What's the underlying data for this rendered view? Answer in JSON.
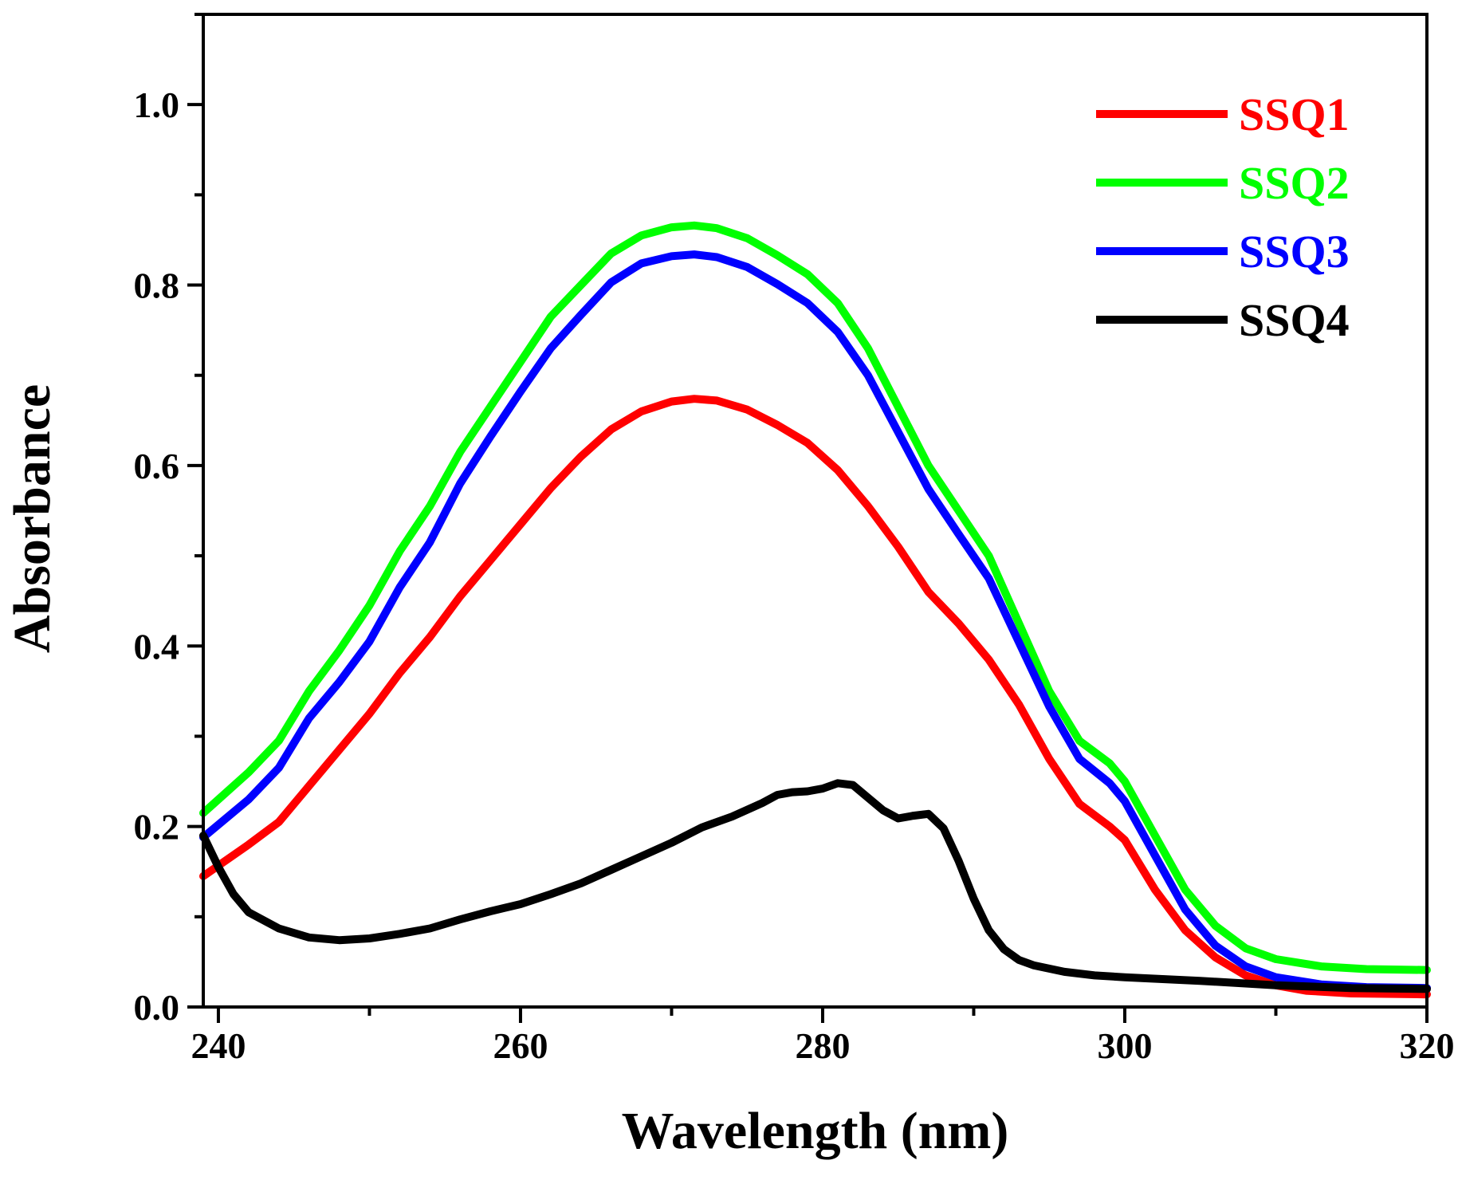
{
  "chart_data": {
    "type": "line",
    "title": "",
    "xlabel": "Wavelength (nm)",
    "ylabel": "Absorbance",
    "xlim": [
      239,
      320
    ],
    "ylim": [
      0.0,
      1.1
    ],
    "xticks": [
      240,
      260,
      280,
      300,
      320
    ],
    "xtick_labels": [
      "240",
      "260",
      "280",
      "300",
      "320"
    ],
    "x_minor_step": 10,
    "yticks": [
      0.0,
      0.2,
      0.4,
      0.6,
      0.8,
      1.0
    ],
    "ytick_labels": [
      "0.0",
      "0.2",
      "0.4",
      "0.6",
      "0.8",
      "1.0"
    ],
    "y_minor_step": 0.1,
    "grid": false,
    "legend_position": "top-right",
    "series": [
      {
        "name": "SSQ1",
        "color": "#ff0000",
        "points": [
          [
            239,
            0.145
          ],
          [
            242,
            0.18
          ],
          [
            244,
            0.205
          ],
          [
            246,
            0.245
          ],
          [
            248,
            0.285
          ],
          [
            250,
            0.325
          ],
          [
            252,
            0.37
          ],
          [
            254,
            0.41
          ],
          [
            256,
            0.455
          ],
          [
            258,
            0.495
          ],
          [
            260,
            0.535
          ],
          [
            262,
            0.575
          ],
          [
            264,
            0.61
          ],
          [
            266,
            0.64
          ],
          [
            268,
            0.66
          ],
          [
            270,
            0.671
          ],
          [
            271.5,
            0.674
          ],
          [
            273,
            0.672
          ],
          [
            275,
            0.662
          ],
          [
            277,
            0.645
          ],
          [
            279,
            0.625
          ],
          [
            281,
            0.595
          ],
          [
            283,
            0.555
          ],
          [
            285,
            0.51
          ],
          [
            287,
            0.46
          ],
          [
            289,
            0.425
          ],
          [
            291,
            0.385
          ],
          [
            293,
            0.335
          ],
          [
            295,
            0.275
          ],
          [
            297,
            0.225
          ],
          [
            299,
            0.2
          ],
          [
            300,
            0.185
          ],
          [
            302,
            0.13
          ],
          [
            304,
            0.085
          ],
          [
            306,
            0.055
          ],
          [
            308,
            0.035
          ],
          [
            310,
            0.024
          ],
          [
            312,
            0.018
          ],
          [
            315,
            0.015
          ],
          [
            320,
            0.014
          ]
        ]
      },
      {
        "name": "SSQ2",
        "color": "#00ff00",
        "points": [
          [
            239,
            0.215
          ],
          [
            242,
            0.26
          ],
          [
            244,
            0.295
          ],
          [
            246,
            0.35
          ],
          [
            248,
            0.395
          ],
          [
            250,
            0.445
          ],
          [
            252,
            0.505
          ],
          [
            254,
            0.555
          ],
          [
            256,
            0.615
          ],
          [
            258,
            0.665
          ],
          [
            260,
            0.715
          ],
          [
            262,
            0.765
          ],
          [
            264,
            0.8
          ],
          [
            266,
            0.835
          ],
          [
            268,
            0.855
          ],
          [
            270,
            0.864
          ],
          [
            271.5,
            0.866
          ],
          [
            273,
            0.863
          ],
          [
            275,
            0.852
          ],
          [
            277,
            0.833
          ],
          [
            279,
            0.812
          ],
          [
            281,
            0.78
          ],
          [
            283,
            0.73
          ],
          [
            285,
            0.665
          ],
          [
            287,
            0.6
          ],
          [
            289,
            0.55
          ],
          [
            291,
            0.5
          ],
          [
            293,
            0.425
          ],
          [
            295,
            0.35
          ],
          [
            297,
            0.295
          ],
          [
            299,
            0.27
          ],
          [
            300,
            0.25
          ],
          [
            302,
            0.19
          ],
          [
            304,
            0.13
          ],
          [
            306,
            0.09
          ],
          [
            308,
            0.065
          ],
          [
            310,
            0.053
          ],
          [
            313,
            0.045
          ],
          [
            316,
            0.042
          ],
          [
            320,
            0.041
          ]
        ]
      },
      {
        "name": "SSQ3",
        "color": "#0000ff",
        "points": [
          [
            239,
            0.188
          ],
          [
            242,
            0.23
          ],
          [
            244,
            0.265
          ],
          [
            246,
            0.32
          ],
          [
            248,
            0.36
          ],
          [
            250,
            0.405
          ],
          [
            252,
            0.465
          ],
          [
            254,
            0.515
          ],
          [
            256,
            0.58
          ],
          [
            258,
            0.632
          ],
          [
            260,
            0.682
          ],
          [
            262,
            0.73
          ],
          [
            264,
            0.767
          ],
          [
            266,
            0.803
          ],
          [
            268,
            0.824
          ],
          [
            270,
            0.832
          ],
          [
            271.5,
            0.834
          ],
          [
            273,
            0.831
          ],
          [
            275,
            0.82
          ],
          [
            277,
            0.801
          ],
          [
            279,
            0.78
          ],
          [
            281,
            0.748
          ],
          [
            283,
            0.7
          ],
          [
            285,
            0.637
          ],
          [
            287,
            0.574
          ],
          [
            289,
            0.524
          ],
          [
            291,
            0.475
          ],
          [
            293,
            0.404
          ],
          [
            295,
            0.333
          ],
          [
            297,
            0.275
          ],
          [
            299,
            0.248
          ],
          [
            300,
            0.228
          ],
          [
            302,
            0.168
          ],
          [
            304,
            0.108
          ],
          [
            306,
            0.068
          ],
          [
            308,
            0.045
          ],
          [
            310,
            0.033
          ],
          [
            313,
            0.025
          ],
          [
            316,
            0.022
          ],
          [
            320,
            0.021
          ]
        ]
      },
      {
        "name": "SSQ4",
        "color": "#000000",
        "points": [
          [
            239,
            0.19
          ],
          [
            240,
            0.155
          ],
          [
            241,
            0.125
          ],
          [
            242,
            0.105
          ],
          [
            244,
            0.087
          ],
          [
            246,
            0.077
          ],
          [
            248,
            0.074
          ],
          [
            250,
            0.076
          ],
          [
            252,
            0.081
          ],
          [
            254,
            0.087
          ],
          [
            256,
            0.097
          ],
          [
            258,
            0.106
          ],
          [
            260,
            0.114
          ],
          [
            262,
            0.125
          ],
          [
            264,
            0.137
          ],
          [
            266,
            0.152
          ],
          [
            268,
            0.167
          ],
          [
            270,
            0.182
          ],
          [
            272,
            0.199
          ],
          [
            274,
            0.211
          ],
          [
            276,
            0.226
          ],
          [
            277,
            0.235
          ],
          [
            278,
            0.238
          ],
          [
            279,
            0.239
          ],
          [
            280,
            0.242
          ],
          [
            281,
            0.248
          ],
          [
            282,
            0.246
          ],
          [
            283,
            0.232
          ],
          [
            284,
            0.218
          ],
          [
            285,
            0.209
          ],
          [
            286,
            0.212
          ],
          [
            287,
            0.214
          ],
          [
            288,
            0.198
          ],
          [
            289,
            0.162
          ],
          [
            290,
            0.12
          ],
          [
            291,
            0.085
          ],
          [
            292,
            0.064
          ],
          [
            293,
            0.052
          ],
          [
            294,
            0.046
          ],
          [
            296,
            0.039
          ],
          [
            298,
            0.035
          ],
          [
            300,
            0.033
          ],
          [
            305,
            0.029
          ],
          [
            310,
            0.024
          ],
          [
            315,
            0.021
          ],
          [
            320,
            0.02
          ]
        ]
      }
    ]
  }
}
